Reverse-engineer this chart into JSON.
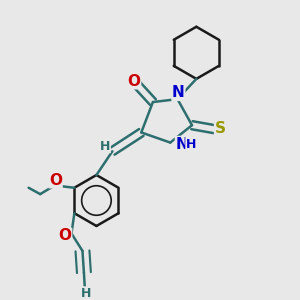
{
  "background_color": "#e8e8e8",
  "bond_color": "#2d6e6e",
  "bond_width": 1.8,
  "figsize": [
    3.0,
    3.0
  ],
  "dpi": 100,
  "colors": {
    "bond": "#2d6e6e",
    "O": "#cc0000",
    "N": "#0000cc",
    "S": "#999900",
    "H": "#2d6e6e",
    "C": "#1a1a1a"
  }
}
